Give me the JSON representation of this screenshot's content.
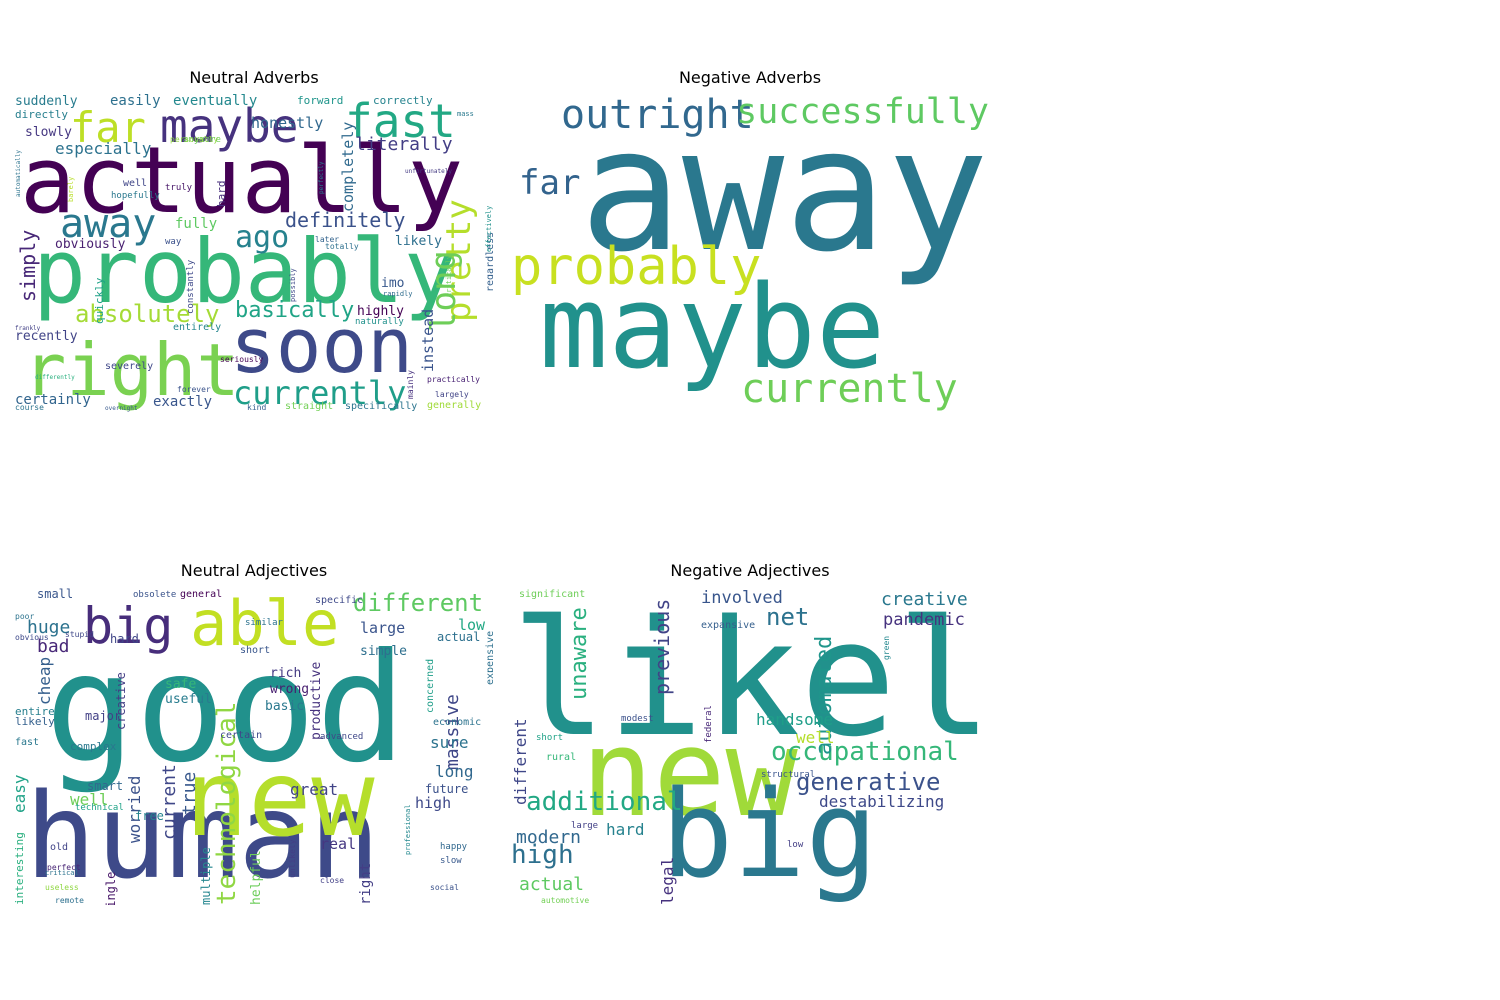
{
  "chart_data": [
    {
      "type": "wordcloud",
      "title": "Neutral Adverbs",
      "words": [
        {
          "text": "actually",
          "weight": 100,
          "color": "#440154"
        },
        {
          "text": "probably",
          "weight": 98,
          "color": "#35b779"
        },
        {
          "text": "soon",
          "weight": 80,
          "color": "#3e4a89"
        },
        {
          "text": "right",
          "weight": 78,
          "color": "#7ad151"
        },
        {
          "text": "maybe",
          "weight": 48,
          "color": "#46327e"
        },
        {
          "text": "fast",
          "weight": 46,
          "color": "#22a884"
        },
        {
          "text": "currently",
          "weight": 36,
          "color": "#1f9e89"
        },
        {
          "text": "far",
          "weight": 42,
          "color": "#bddf26"
        },
        {
          "text": "away",
          "weight": 40,
          "color": "#2a788e"
        },
        {
          "text": "pretty",
          "weight": 34,
          "color": "#b5de2b"
        },
        {
          "text": "long",
          "weight": 34,
          "color": "#6ece58"
        },
        {
          "text": "ago",
          "weight": 30,
          "color": "#26828e"
        },
        {
          "text": "absolutely",
          "weight": 26,
          "color": "#a5db36"
        },
        {
          "text": "basically",
          "weight": 24,
          "color": "#20a486"
        },
        {
          "text": "definitely",
          "weight": 20,
          "color": "#3b528b"
        },
        {
          "text": "literally",
          "weight": 18,
          "color": "#433e85"
        },
        {
          "text": "simply",
          "weight": 20,
          "color": "#482878"
        },
        {
          "text": "especially",
          "weight": 16,
          "color": "#2c728e"
        },
        {
          "text": "honestly",
          "weight": 15,
          "color": "#31688e"
        },
        {
          "text": "completely",
          "weight": 15,
          "color": "#306a8e"
        },
        {
          "text": "instead",
          "weight": 15,
          "color": "#3a548c"
        },
        {
          "text": "easily",
          "weight": 14,
          "color": "#2d708e"
        },
        {
          "text": "eventually",
          "weight": 14,
          "color": "#23888e"
        },
        {
          "text": "certainly",
          "weight": 14,
          "color": "#32658e"
        },
        {
          "text": "exactly",
          "weight": 14,
          "color": "#39568c"
        },
        {
          "text": "fully",
          "weight": 14,
          "color": "#5ec962"
        },
        {
          "text": "obviously",
          "weight": 13,
          "color": "#481f70"
        },
        {
          "text": "likely",
          "weight": 13,
          "color": "#2e6f8e"
        },
        {
          "text": "highly",
          "weight": 13,
          "color": "#440154"
        },
        {
          "text": "recently",
          "weight": 13,
          "color": "#414487"
        },
        {
          "text": "suddenly",
          "weight": 13,
          "color": "#287c8e"
        },
        {
          "text": "slowly",
          "weight": 13,
          "color": "#453781"
        },
        {
          "text": "forward",
          "weight": 11,
          "color": "#1f958b"
        },
        {
          "text": "correctly",
          "weight": 11,
          "color": "#25838e"
        },
        {
          "text": "directly",
          "weight": 11,
          "color": "#277f8e"
        },
        {
          "text": "quickly",
          "weight": 11,
          "color": "#1fa287"
        },
        {
          "text": "imo",
          "weight": 13,
          "color": "#38588c"
        },
        {
          "text": "hard",
          "weight": 11,
          "color": "#472d7b"
        },
        {
          "text": "well",
          "weight": 10,
          "color": "#404688"
        },
        {
          "text": "regardless",
          "weight": 10,
          "color": "#34608d"
        },
        {
          "text": "generally",
          "weight": 10,
          "color": "#a0da39"
        },
        {
          "text": "specifically",
          "weight": 10,
          "color": "#2b748e"
        },
        {
          "text": "straight",
          "weight": 10,
          "color": "#73d056"
        },
        {
          "text": "entirely",
          "weight": 10,
          "color": "#24868e"
        },
        {
          "text": "severely",
          "weight": 10,
          "color": "#3f4788"
        },
        {
          "text": "seriously",
          "weight": 8,
          "color": "#440154"
        },
        {
          "text": "hopefully",
          "weight": 9,
          "color": "#2a788e"
        },
        {
          "text": "constantly",
          "weight": 9,
          "color": "#3e4989"
        },
        {
          "text": "naturally",
          "weight": 9,
          "color": "#21918c"
        },
        {
          "text": "truly",
          "weight": 9,
          "color": "#481769"
        },
        {
          "text": "anymore",
          "weight": 9,
          "color": "#6ece58"
        },
        {
          "text": "way",
          "weight": 9,
          "color": "#3b518b"
        },
        {
          "text": "mainly",
          "weight": 8,
          "color": "#46307e"
        },
        {
          "text": "practically",
          "weight": 8,
          "color": "#482173"
        },
        {
          "text": "largely",
          "weight": 8,
          "color": "#414487"
        },
        {
          "text": "forever",
          "weight": 8,
          "color": "#3a538b"
        },
        {
          "text": "kind",
          "weight": 8,
          "color": "#355f8d"
        },
        {
          "text": "course",
          "weight": 8,
          "color": "#2c738e"
        },
        {
          "text": "personally",
          "weight": 8,
          "color": "#90d743"
        },
        {
          "text": "later",
          "weight": 8,
          "color": "#33638d"
        },
        {
          "text": "totally",
          "weight": 8,
          "color": "#2d708e"
        },
        {
          "text": "possibly",
          "weight": 7,
          "color": "#3e4989"
        },
        {
          "text": "rapidly",
          "weight": 7,
          "color": "#2f6c8e"
        },
        {
          "text": "mass",
          "weight": 7,
          "color": "#29798e"
        },
        {
          "text": "critically",
          "weight": 7,
          "color": "#6ccd5a"
        },
        {
          "text": "effectively",
          "weight": 7,
          "color": "#21918c"
        },
        {
          "text": "barely",
          "weight": 7,
          "color": "#b8de29"
        },
        {
          "text": "frankly",
          "weight": 6,
          "color": "#424086"
        },
        {
          "text": "differently",
          "weight": 6,
          "color": "#2ab07f"
        },
        {
          "text": "overnight",
          "weight": 6,
          "color": "#38598c"
        },
        {
          "text": "unfortunately",
          "weight": 6,
          "color": "#443a83"
        },
        {
          "text": "perfectly",
          "weight": 6,
          "color": "#277f8e"
        },
        {
          "text": "automatically",
          "weight": 6,
          "color": "#2c738e"
        }
      ]
    },
    {
      "type": "wordcloud",
      "title": "Negative Adverbs",
      "words": [
        {
          "text": "away",
          "weight": 100,
          "color": "#2a788e"
        },
        {
          "text": "maybe",
          "weight": 70,
          "color": "#21918c"
        },
        {
          "text": "probably",
          "weight": 34,
          "color": "#c8e020"
        },
        {
          "text": "outright",
          "weight": 28,
          "color": "#31688e"
        },
        {
          "text": "successfully",
          "weight": 26,
          "color": "#5ec962"
        },
        {
          "text": "currently",
          "weight": 28,
          "color": "#6ece58"
        },
        {
          "text": "far",
          "weight": 22,
          "color": "#33638d"
        }
      ]
    },
    {
      "type": "wordcloud",
      "title": "Neutral Adjectives",
      "words": [
        {
          "text": "good",
          "weight": 100,
          "color": "#21918c"
        },
        {
          "text": "human",
          "weight": 92,
          "color": "#3e4a89"
        },
        {
          "text": "new",
          "weight": 76,
          "color": "#b5de2b"
        },
        {
          "text": "able",
          "weight": 52,
          "color": "#c2df23"
        },
        {
          "text": "big",
          "weight": 38,
          "color": "#472d7b"
        },
        {
          "text": "different",
          "weight": 24,
          "color": "#5ec962"
        },
        {
          "text": "technological",
          "weight": 26,
          "color": "#90d743"
        },
        {
          "text": "massive",
          "weight": 18,
          "color": "#3f4788"
        },
        {
          "text": "huge",
          "weight": 18,
          "color": "#2c728e"
        },
        {
          "text": "bad",
          "weight": 18,
          "color": "#482878"
        },
        {
          "text": "cheap",
          "weight": 16,
          "color": "#355f8d"
        },
        {
          "text": "current",
          "weight": 18,
          "color": "#3f4788"
        },
        {
          "text": "worried",
          "weight": 16,
          "color": "#3b528b"
        },
        {
          "text": "true",
          "weight": 18,
          "color": "#38588c"
        },
        {
          "text": "great",
          "weight": 16,
          "color": "#414487"
        },
        {
          "text": "easy",
          "weight": 16,
          "color": "#1fa287"
        },
        {
          "text": "well",
          "weight": 16,
          "color": "#6ece58"
        },
        {
          "text": "high",
          "weight": 16,
          "color": "#3e4989"
        },
        {
          "text": "long",
          "weight": 16,
          "color": "#31688e"
        },
        {
          "text": "sure",
          "weight": 16,
          "color": "#2c738e"
        },
        {
          "text": "real",
          "weight": 15,
          "color": "#453781"
        },
        {
          "text": "right",
          "weight": 14,
          "color": "#433e85"
        },
        {
          "text": "low",
          "weight": 15,
          "color": "#22a884"
        },
        {
          "text": "large",
          "weight": 15,
          "color": "#3a548c"
        },
        {
          "text": "simple",
          "weight": 13,
          "color": "#2e6f8e"
        },
        {
          "text": "productive",
          "weight": 13,
          "color": "#46327e"
        },
        {
          "text": "helpful",
          "weight": 13,
          "color": "#6ccd5a"
        },
        {
          "text": "rich",
          "weight": 13,
          "color": "#443a83"
        },
        {
          "text": "wrong",
          "weight": 13,
          "color": "#481f70"
        },
        {
          "text": "safe",
          "weight": 13,
          "color": "#35b779"
        },
        {
          "text": "useful",
          "weight": 13,
          "color": "#287c8e"
        },
        {
          "text": "basic",
          "weight": 13,
          "color": "#2a788e"
        },
        {
          "text": "creative",
          "weight": 12,
          "color": "#433e85"
        },
        {
          "text": "small",
          "weight": 12,
          "color": "#39568c"
        },
        {
          "text": "hard",
          "weight": 12,
          "color": "#404688"
        },
        {
          "text": "major",
          "weight": 12,
          "color": "#424086"
        },
        {
          "text": "smart",
          "weight": 12,
          "color": "#31688e"
        },
        {
          "text": "free",
          "weight": 12,
          "color": "#25838e"
        },
        {
          "text": "actual",
          "weight": 12,
          "color": "#2d708e"
        },
        {
          "text": "future",
          "weight": 12,
          "color": "#3b518b"
        },
        {
          "text": "single",
          "weight": 12,
          "color": "#481769"
        },
        {
          "text": "multiple",
          "weight": 12,
          "color": "#24868e"
        },
        {
          "text": "interesting",
          "weight": 11,
          "color": "#2ab07f"
        },
        {
          "text": "complex",
          "weight": 11,
          "color": "#2a788e"
        },
        {
          "text": "entire",
          "weight": 11,
          "color": "#277f8e"
        },
        {
          "text": "likely",
          "weight": 11,
          "color": "#34608d"
        },
        {
          "text": "expensive",
          "weight": 10,
          "color": "#2d708e"
        },
        {
          "text": "concerned",
          "weight": 10,
          "color": "#1f9e89"
        },
        {
          "text": "economic",
          "weight": 10,
          "color": "#2c738e"
        },
        {
          "text": "specific",
          "weight": 10,
          "color": "#3e4989"
        },
        {
          "text": "general",
          "weight": 10,
          "color": "#440154"
        },
        {
          "text": "similar",
          "weight": 9,
          "color": "#2c728e"
        },
        {
          "text": "obsolete",
          "weight": 9,
          "color": "#3a538b"
        },
        {
          "text": "short",
          "weight": 10,
          "color": "#39568c"
        },
        {
          "text": "certain",
          "weight": 10,
          "color": "#3e4989"
        },
        {
          "text": "advanced",
          "weight": 9,
          "color": "#3f4788"
        },
        {
          "text": "happy",
          "weight": 9,
          "color": "#31688e"
        },
        {
          "text": "slow",
          "weight": 9,
          "color": "#38598c"
        },
        {
          "text": "old",
          "weight": 10,
          "color": "#414487"
        },
        {
          "text": "fast",
          "weight": 10,
          "color": "#2a788e"
        },
        {
          "text": "technical",
          "weight": 9,
          "color": "#1fa287"
        },
        {
          "text": "perfect",
          "weight": 8,
          "color": "#482475"
        },
        {
          "text": "useless",
          "weight": 8,
          "color": "#90d743"
        },
        {
          "text": "social",
          "weight": 8,
          "color": "#3b528b"
        },
        {
          "text": "close",
          "weight": 8,
          "color": "#424086"
        },
        {
          "text": "unlikely",
          "weight": 8,
          "color": "#433e85"
        },
        {
          "text": "stupid",
          "weight": 8,
          "color": "#3f4788"
        },
        {
          "text": "poor",
          "weight": 8,
          "color": "#2c738e"
        },
        {
          "text": "obvious",
          "weight": 8,
          "color": "#3e4989"
        },
        {
          "text": "remote",
          "weight": 8,
          "color": "#2d708e"
        },
        {
          "text": "critical",
          "weight": 7,
          "color": "#2c738e"
        },
        {
          "text": "professional",
          "weight": 7,
          "color": "#23888e"
        }
      ]
    },
    {
      "type": "wordcloud",
      "title": "Negative Adjectives",
      "words": [
        {
          "text": "likely",
          "weight": 100,
          "color": "#21918c"
        },
        {
          "text": "new",
          "weight": 95,
          "color": "#a0da39"
        },
        {
          "text": "big",
          "weight": 80,
          "color": "#2a788e"
        },
        {
          "text": "occupational",
          "weight": 22,
          "color": "#35b779"
        },
        {
          "text": "generative",
          "weight": 22,
          "color": "#3b528b"
        },
        {
          "text": "additional",
          "weight": 22,
          "color": "#22a884"
        },
        {
          "text": "unaware",
          "weight": 22,
          "color": "#2ab07f"
        },
        {
          "text": "automated",
          "weight": 22,
          "color": "#1f958b"
        },
        {
          "text": "net",
          "weight": 22,
          "color": "#2c728e"
        },
        {
          "text": "previous",
          "weight": 20,
          "color": "#414487"
        },
        {
          "text": "high",
          "weight": 22,
          "color": "#2d708e"
        },
        {
          "text": "modern",
          "weight": 18,
          "color": "#31688e"
        },
        {
          "text": "actual",
          "weight": 18,
          "color": "#5ec962"
        },
        {
          "text": "creative",
          "weight": 18,
          "color": "#2a788e"
        },
        {
          "text": "pandemic",
          "weight": 17,
          "color": "#46327e"
        },
        {
          "text": "involved",
          "weight": 17,
          "color": "#39568c"
        },
        {
          "text": "handsome",
          "weight": 16,
          "color": "#1f9e89"
        },
        {
          "text": "destabilizing",
          "weight": 16,
          "color": "#3e4989"
        },
        {
          "text": "different",
          "weight": 16,
          "color": "#3f4788"
        },
        {
          "text": "well",
          "weight": 16,
          "color": "#b5de2b"
        },
        {
          "text": "hard",
          "weight": 16,
          "color": "#26828e"
        },
        {
          "text": "legal",
          "weight": 16,
          "color": "#46327e"
        },
        {
          "text": "expansive",
          "weight": 10,
          "color": "#355f8d"
        },
        {
          "text": "significant",
          "weight": 10,
          "color": "#6ece58"
        },
        {
          "text": "modest",
          "weight": 9,
          "color": "#3b518b"
        },
        {
          "text": "short",
          "weight": 9,
          "color": "#1fa287"
        },
        {
          "text": "rural",
          "weight": 10,
          "color": "#35b779"
        },
        {
          "text": "federal",
          "weight": 9,
          "color": "#482878"
        },
        {
          "text": "structural",
          "weight": 9,
          "color": "#3a548c"
        },
        {
          "text": "large",
          "weight": 9,
          "color": "#424086"
        },
        {
          "text": "low",
          "weight": 9,
          "color": "#433e85"
        },
        {
          "text": "automotive",
          "weight": 8,
          "color": "#73d056"
        },
        {
          "text": "green",
          "weight": 8,
          "color": "#23888e"
        }
      ]
    }
  ]
}
